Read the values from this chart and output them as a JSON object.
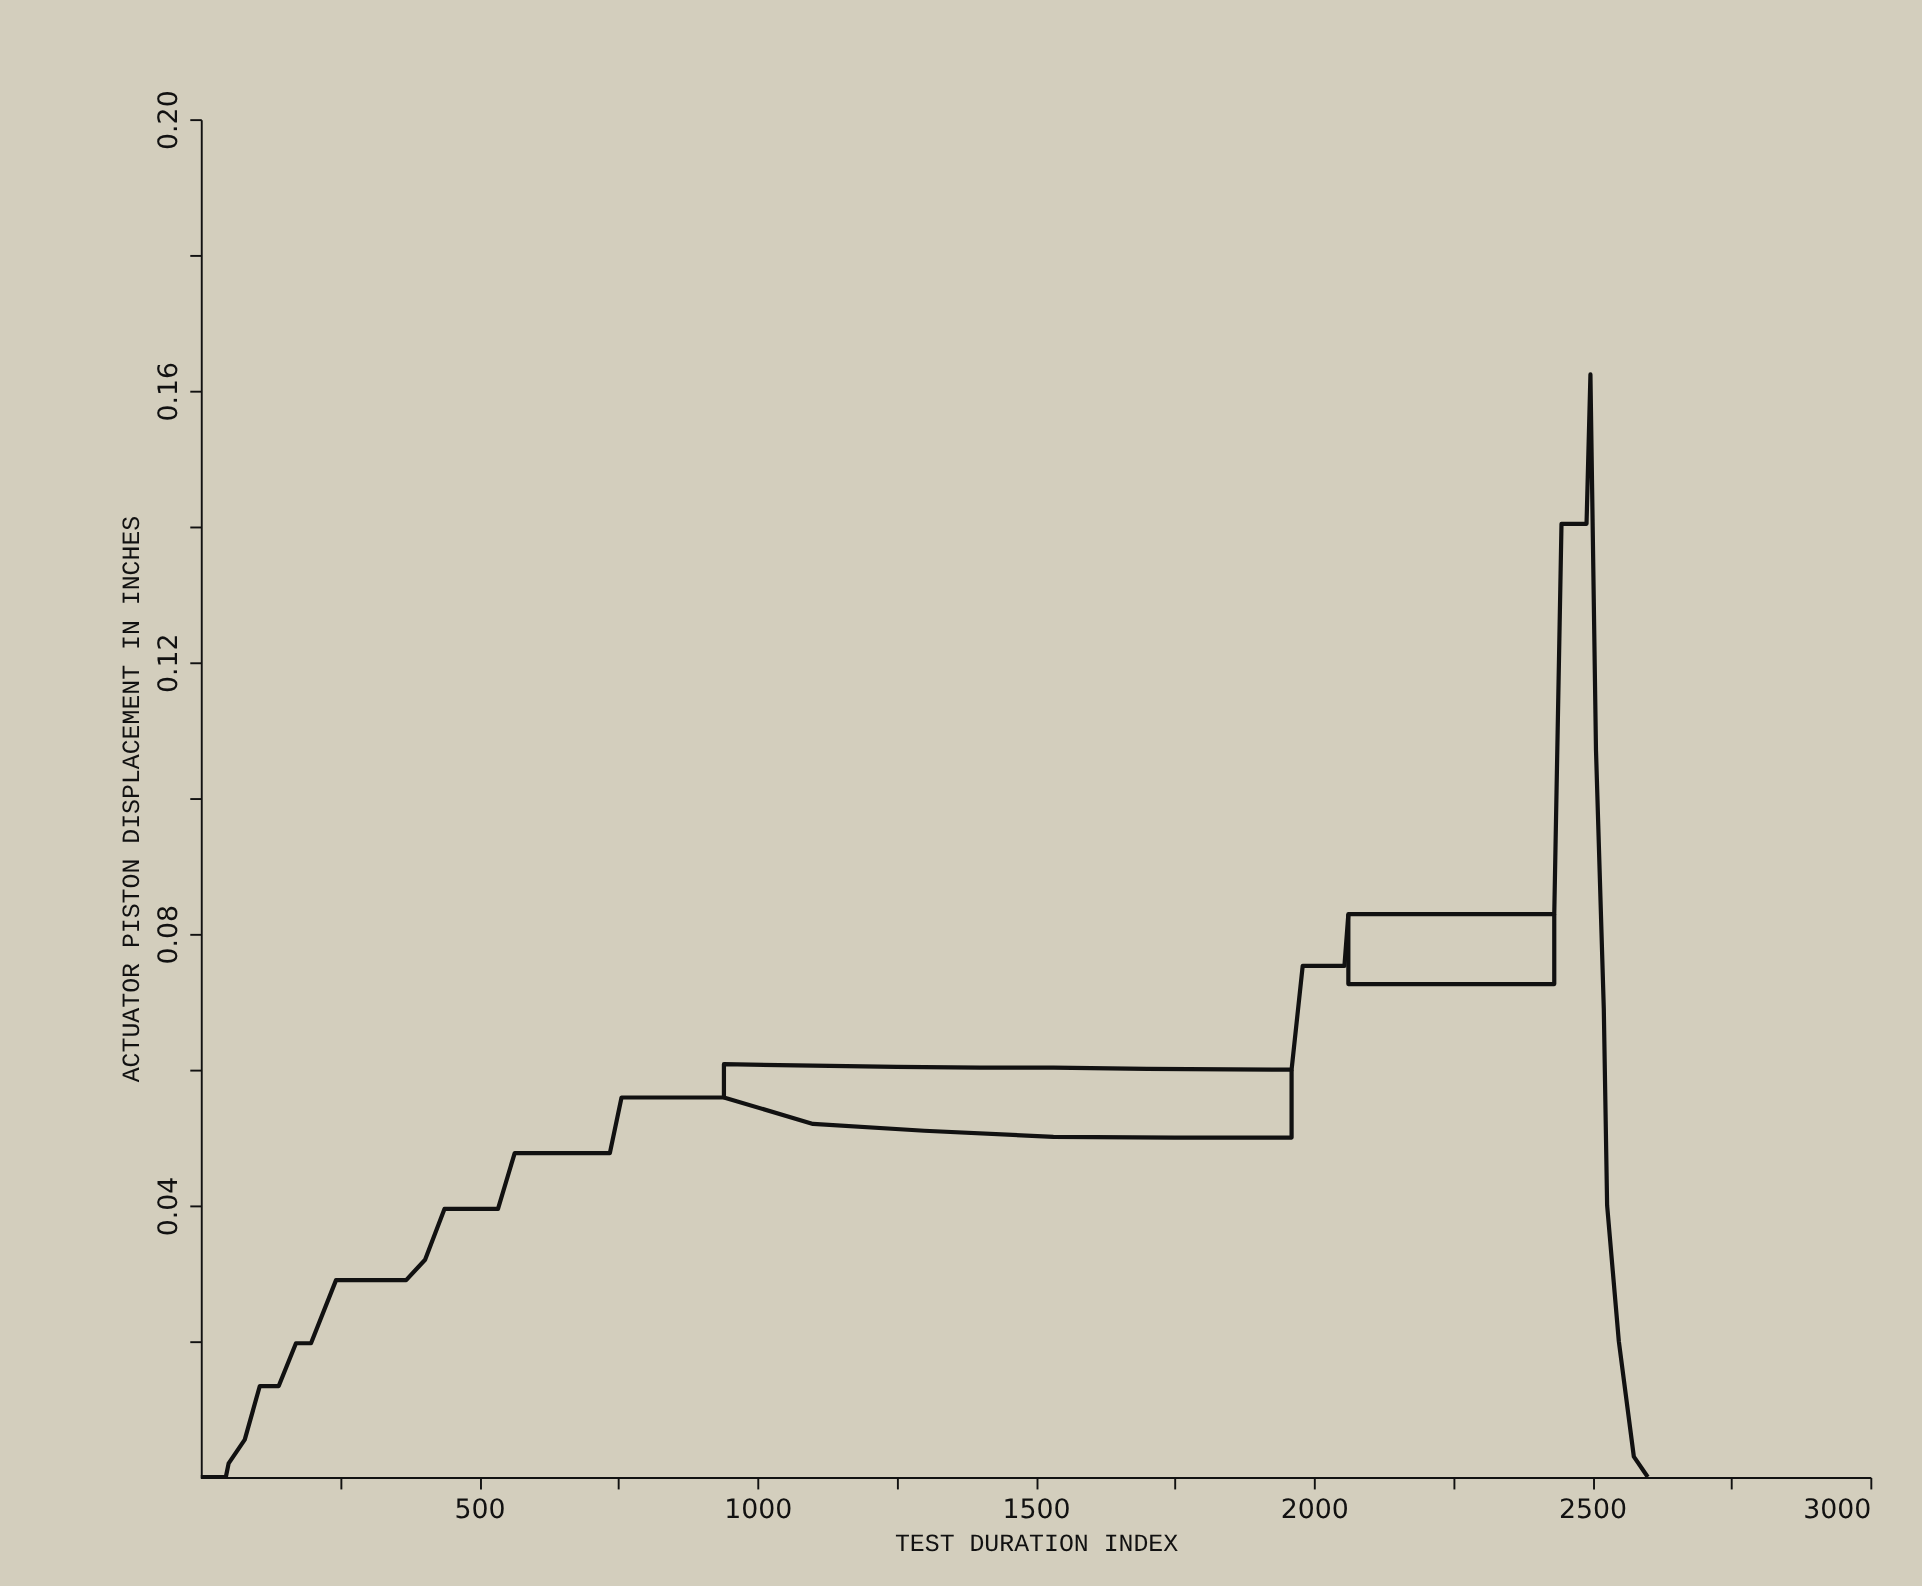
{
  "chart_data": {
    "type": "line",
    "xlabel": "TEST DURATION INDEX",
    "ylabel": "ACTUATOR PISTON DISPLACEMENT IN INCHES",
    "xlim": [
      0,
      3000
    ],
    "ylim": [
      0,
      0.2
    ],
    "xticks": [
      {
        "value": 250,
        "label": null
      },
      500,
      {
        "value": 750,
        "label": null
      },
      1000,
      {
        "value": 1250,
        "label": null
      },
      1500,
      {
        "value": 1750,
        "label": null
      },
      2000,
      {
        "value": 2250,
        "label": null
      },
      2500,
      {
        "value": 2750,
        "label": null
      },
      3000
    ],
    "yticks": [
      {
        "value": 0.02,
        "label": null
      },
      0.04,
      {
        "value": 0.06,
        "label": null
      },
      0.08,
      {
        "value": 0.1,
        "label": null
      },
      0.12,
      {
        "value": 0.14,
        "label": null
      },
      0.16,
      {
        "value": 0.18,
        "label": null
      },
      {
        "value": 0.2,
        "label": "0.20"
      }
    ],
    "grid": false,
    "legend": false,
    "marker": "none",
    "line_style": "solid",
    "series": [
      {
        "color": "#111111",
        "x": [
          0,
          45,
          50,
          79,
          106,
          140,
          171,
          198,
          243,
          369,
          403,
          438,
          534,
          564,
          735,
          756,
          906,
          940,
          940,
          1100,
          1250,
          1400,
          1532,
          1700,
          1943,
          1960,
          1980,
          1994,
          2055,
          2062,
          2200,
          2300,
          2432,
          2445,
          2490,
          2497,
          2507,
          2521,
          2527,
          2548,
          2575,
          2600
        ],
        "values": [
          0,
          0,
          0.002,
          0.0055,
          0.0134,
          0.0134,
          0.0197,
          0.0197,
          0.029,
          0.029,
          0.032,
          0.0395,
          0.0395,
          0.0477,
          0.0477,
          0.0559,
          0.0559,
          0.0559,
          0.0608,
          0.0606,
          0.0604,
          0.0603,
          0.0603,
          0.0601,
          0.06,
          0.06,
          0.0753,
          0.0753,
          0.0753,
          0.0829,
          0.0829,
          0.0829,
          0.0829,
          0.1404,
          0.1404,
          0.1624,
          0.107,
          0.069,
          0.04,
          0.02,
          0.003,
          0
        ]
      },
      {
        "color": "#111111",
        "x": [
          940,
          1100,
          1300,
          1532,
          1750,
          1960,
          1960
        ],
        "values": [
          0.0559,
          0.052,
          0.051,
          0.0501,
          0.05,
          0.05,
          0.06
        ]
      },
      {
        "color": "#111111",
        "x": [
          2062,
          2062,
          2250,
          2432,
          2432
        ],
        "values": [
          0.0829,
          0.0726,
          0.0726,
          0.0726,
          0.0829
        ]
      }
    ]
  }
}
